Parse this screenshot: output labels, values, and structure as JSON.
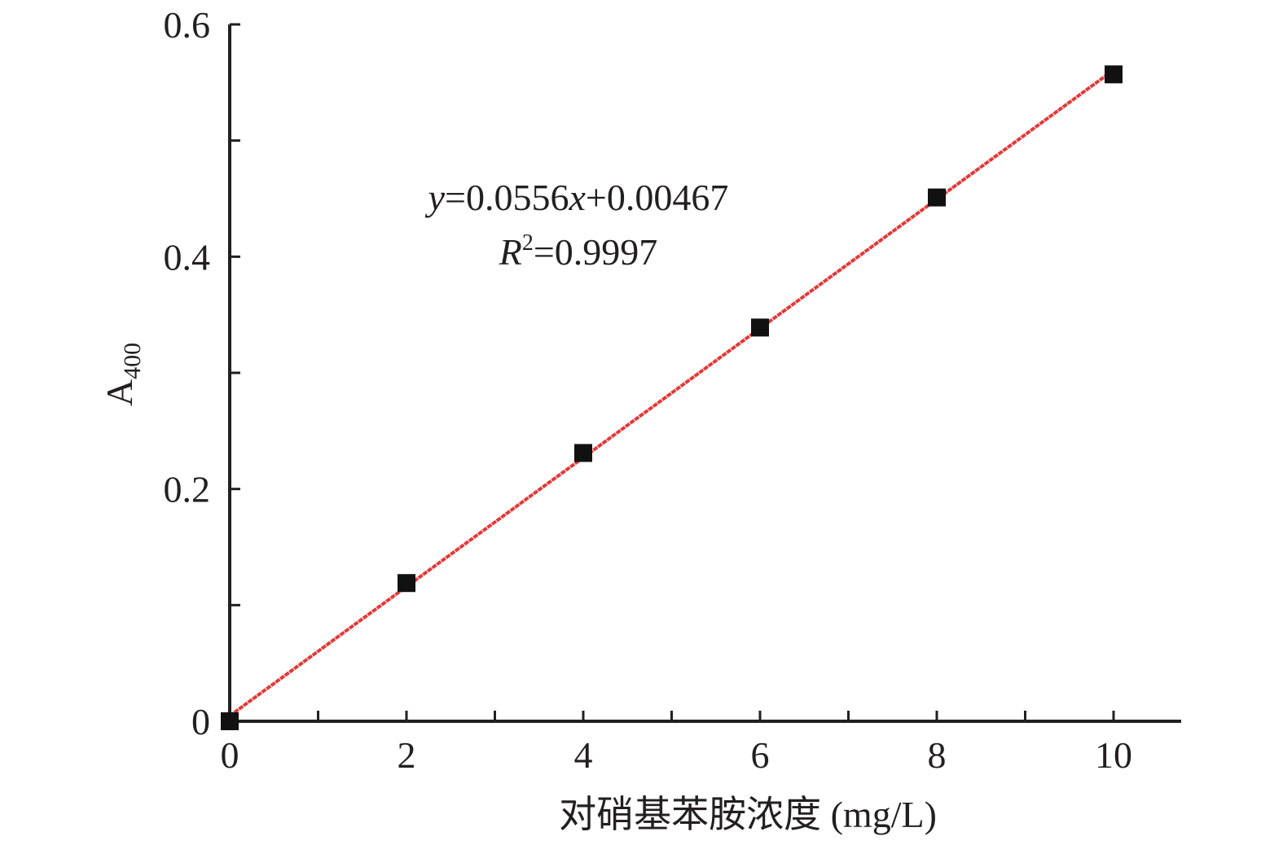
{
  "chart_data": {
    "type": "scatter",
    "x": [
      0,
      2,
      4,
      6,
      8,
      10
    ],
    "y": [
      0.0,
      0.119,
      0.231,
      0.339,
      0.451,
      0.557
    ],
    "xlabel": "对硝基苯胺浓度 (mg/L)",
    "ylabel": "A",
    "ylabel_sub": "400",
    "xlim": [
      0,
      10.8
    ],
    "ylim": [
      0,
      0.6
    ],
    "x_ticks": [
      0,
      2,
      4,
      6,
      8,
      10
    ],
    "y_ticks": [
      0,
      0.2,
      0.4,
      0.6
    ],
    "x_tick_labels": [
      "0",
      "2",
      "4",
      "6",
      "8",
      "10"
    ],
    "y_tick_labels": [
      "0",
      "0.2",
      "0.4",
      "0.6"
    ],
    "fit": {
      "slope": 0.0556,
      "intercept": 0.00467,
      "x_range": [
        0,
        10
      ]
    },
    "annotations": {
      "eq_y": "y",
      "eq_mid": "=0.0556",
      "eq_x": "x",
      "eq_rest": "+0.00467",
      "r_sym": "R",
      "r_sup": "2",
      "r_val": "=0.9997"
    },
    "grid": false,
    "legend": "none",
    "colors": {
      "marker": "#111111",
      "fit_line": "#e03a3a",
      "axis": "#231f20"
    }
  }
}
